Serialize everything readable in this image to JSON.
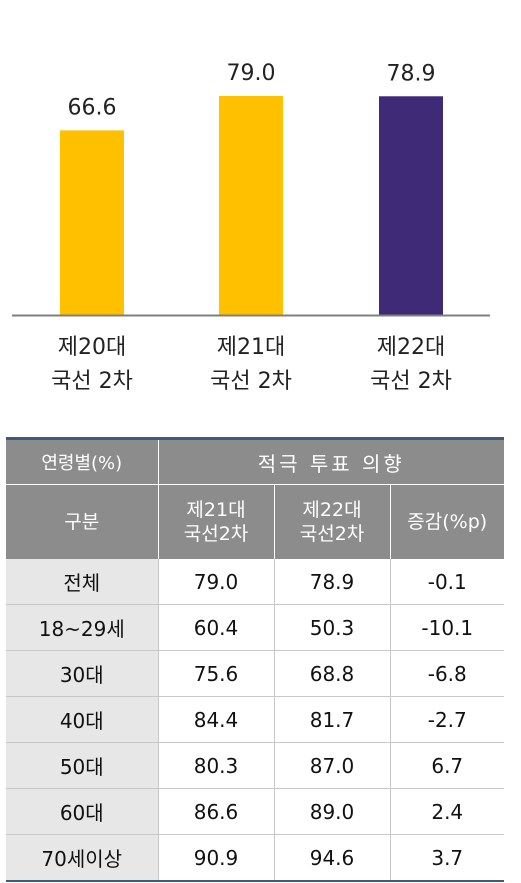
{
  "chart_data": {
    "type": "bar",
    "categories": [
      [
        "제20대",
        "국선 2차"
      ],
      [
        "제21대",
        "국선 2차"
      ],
      [
        "제22대",
        "국선 2차"
      ]
    ],
    "values": [
      66.6,
      79.0,
      78.9
    ],
    "value_labels": [
      "66.6",
      "79.0",
      "78.9"
    ],
    "colors": [
      "#ffc000",
      "#ffc000",
      "#3f2a78"
    ],
    "baseline_color": "#7f7f7f",
    "ylim": [
      0,
      100
    ],
    "grid": false
  },
  "table": {
    "header_row1": [
      "연령별(%)",
      "적극 투표 의향"
    ],
    "header_row2": [
      "구분",
      "제21대\n국선2차",
      "제22대\n국선2차",
      "증감(%p)"
    ],
    "rows": [
      [
        "전체",
        "79.0",
        "78.9",
        "-0.1"
      ],
      [
        "18~29세",
        "60.4",
        "50.3",
        "-10.1"
      ],
      [
        "30대",
        "75.6",
        "68.8",
        "-6.8"
      ],
      [
        "40대",
        "84.4",
        "81.7",
        "-2.7"
      ],
      [
        "50대",
        "80.3",
        "87.0",
        "6.7"
      ],
      [
        "60대",
        "86.6",
        "89.0",
        "2.4"
      ],
      [
        "70세이상",
        "90.9",
        "94.6",
        "3.7"
      ]
    ]
  }
}
